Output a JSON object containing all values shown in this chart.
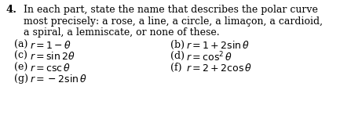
{
  "background_color": "#ffffff",
  "number": "4.",
  "intro_lines": [
    "In each part, state the name that describes the polar curve",
    "most precisely: a rose, a line, a circle, a limaçon, a cardioid,",
    "a spiral, a lemniscate, or none of these."
  ],
  "left_items": [
    [
      "(a) ",
      "$r = 1 - \\theta$"
    ],
    [
      "(c) ",
      "$r = \\sin 2\\theta$"
    ],
    [
      "(e) ",
      "$r = \\csc\\theta$"
    ],
    [
      "(g) ",
      "$r = -2\\sin\\theta$"
    ]
  ],
  "right_items": [
    [
      "(b) ",
      "$r = 1 + 2\\sin\\theta$"
    ],
    [
      "(d) ",
      "$r = \\cos^2\\theta$"
    ],
    [
      "(f) ",
      "$r = 2 + 2\\cos\\theta$"
    ]
  ],
  "font_size_number": 9.5,
  "font_size_intro": 9.0,
  "font_size_items": 9.0,
  "text_color": "#000000",
  "fig_width": 4.61,
  "fig_height": 1.61,
  "dpi": 100
}
